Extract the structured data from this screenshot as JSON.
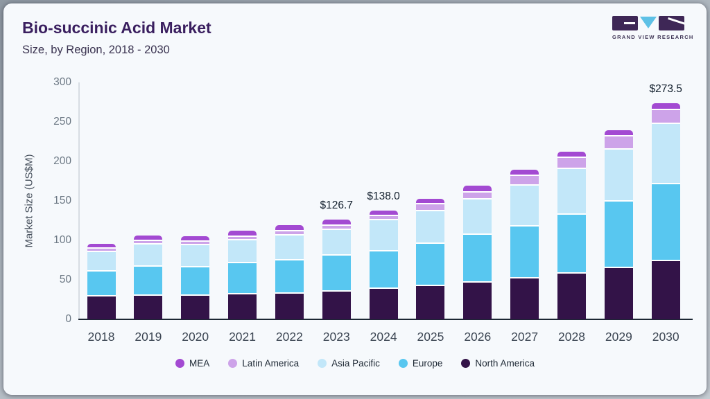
{
  "header": {
    "title": "Bio-succinic Acid Market",
    "subtitle": "Size, by Region, 2018 - 2030"
  },
  "logo": {
    "brand": "GRAND VIEW RESEARCH"
  },
  "chart_data": {
    "type": "bar",
    "stacked": true,
    "title": "Bio-succinic Acid Market Size, by Region, 2018 - 2030",
    "ylabel": "Market Size (US$M)",
    "ylim": [
      0,
      300
    ],
    "yticks": [
      0,
      50,
      100,
      150,
      200,
      250,
      300
    ],
    "grid": false,
    "categories": [
      "2018",
      "2019",
      "2020",
      "2021",
      "2022",
      "2023",
      "2024",
      "2025",
      "2026",
      "2027",
      "2028",
      "2029",
      "2030"
    ],
    "series": [
      {
        "name": "North America",
        "color": "#331348",
        "values": [
          28.7,
          30.1,
          29.6,
          31.6,
          32.5,
          35.4,
          38.9,
          42.4,
          46.8,
          51.5,
          57.9,
          65.2,
          74.0
        ]
      },
      {
        "name": "Europe",
        "color": "#58c7f0",
        "values": [
          32.1,
          36.6,
          36.4,
          39.5,
          42.1,
          45.0,
          47.3,
          53.5,
          59.9,
          66.3,
          74.6,
          83.9,
          97.1
        ]
      },
      {
        "name": "Asia Pacific",
        "color": "#c2e7f9",
        "values": [
          24.0,
          27.8,
          27.9,
          28.6,
          31.5,
          33.0,
          39.0,
          40.9,
          44.8,
          51.2,
          57.6,
          65.8,
          76.3
        ]
      },
      {
        "name": "Latin America",
        "color": "#cda3e9",
        "values": [
          4.4,
          4.4,
          4.3,
          5.0,
          5.3,
          5.0,
          5.8,
          8.5,
          9.3,
          12.6,
          14.0,
          16.6,
          17.2
        ]
      },
      {
        "name": "MEA",
        "color": "#a34ad2",
        "values": [
          6.7,
          7.2,
          7.3,
          7.3,
          7.9,
          8.3,
          7.0,
          7.0,
          8.2,
          8.1,
          7.9,
          8.0,
          8.9
        ]
      }
    ],
    "totals": [
      95.9,
      106.1,
      105.5,
      112.0,
      119.3,
      126.7,
      138.0,
      152.3,
      169.0,
      189.7,
      212.0,
      239.5,
      273.5
    ],
    "annotations": [
      {
        "category": "2023",
        "text": "$126.7"
      },
      {
        "category": "2024",
        "text": "$138.0"
      },
      {
        "category": "2030",
        "text": "$273.5"
      }
    ],
    "legend_order": [
      "MEA",
      "Latin America",
      "Asia Pacific",
      "Europe",
      "North America"
    ],
    "legend_position": "bottom"
  }
}
